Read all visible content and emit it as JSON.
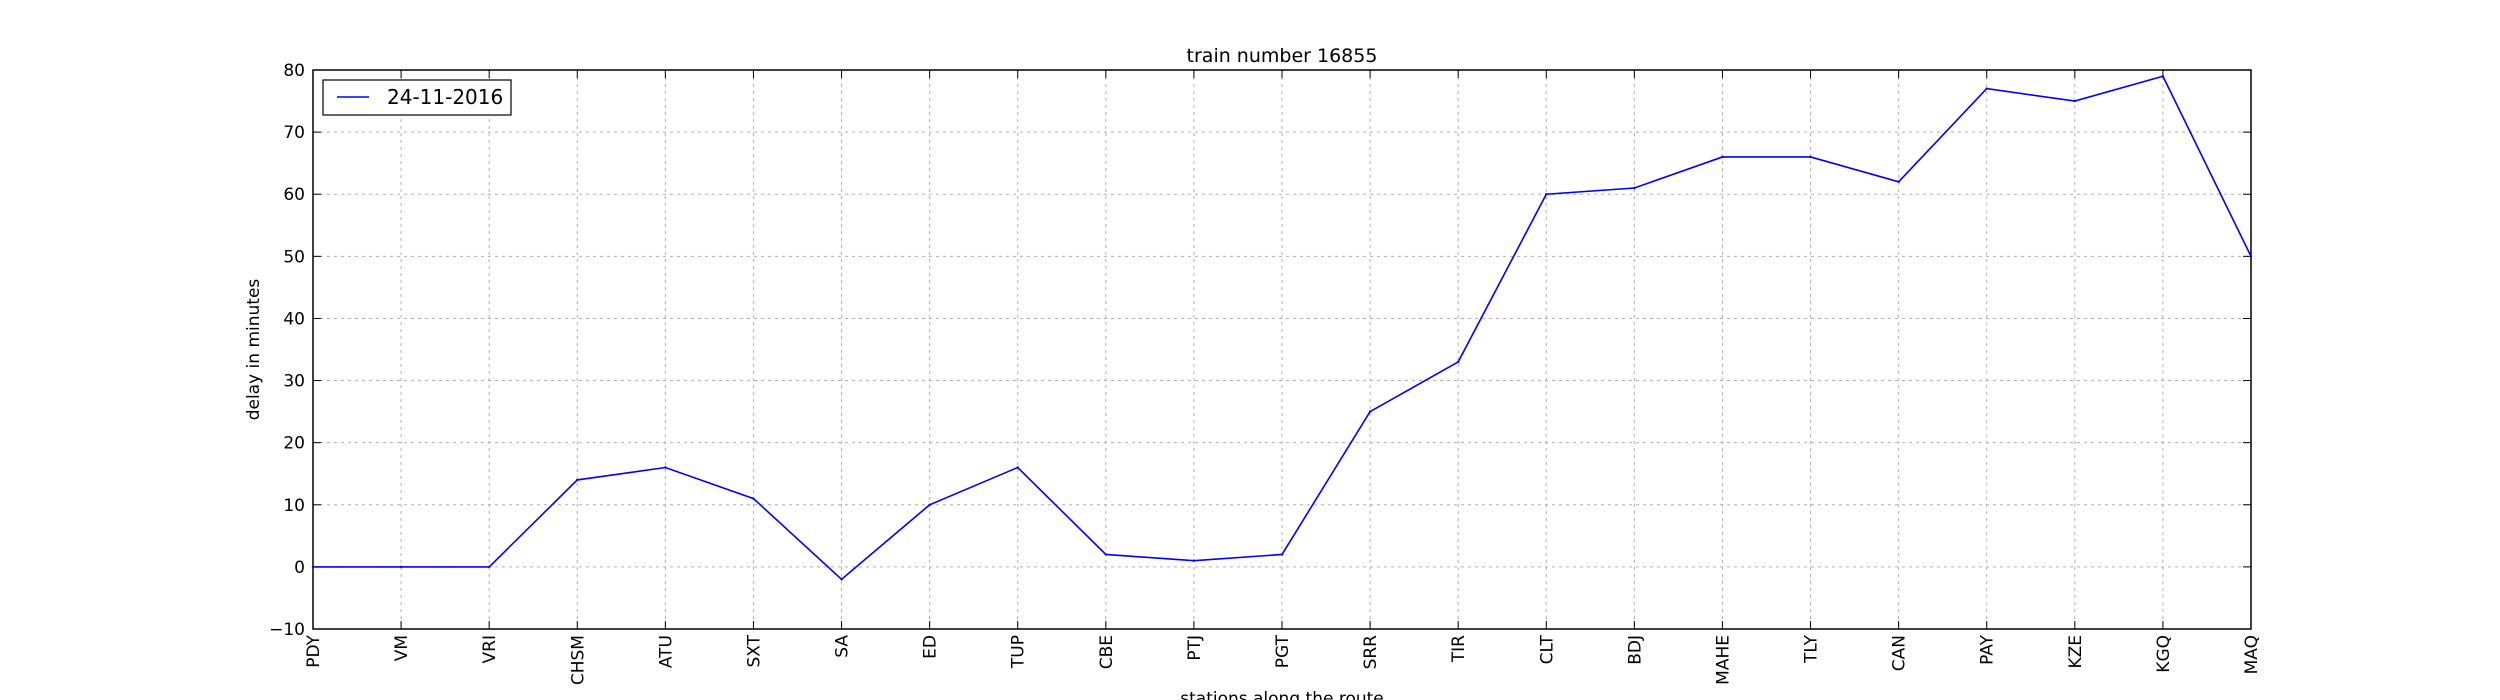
{
  "chart_data": {
    "type": "line",
    "title": "train number 16855",
    "xlabel": "stations along the route",
    "ylabel": "delay in minutes",
    "categories": [
      "PDY",
      "VM",
      "VRI",
      "CHSM",
      "ATU",
      "SXT",
      "SA",
      "ED",
      "TUP",
      "CBE",
      "PTJ",
      "PGT",
      "SRR",
      "TIR",
      "CLT",
      "BDJ",
      "MAHE",
      "TLY",
      "CAN",
      "PAY",
      "KZE",
      "KGQ",
      "MAQ"
    ],
    "series": [
      {
        "name": "24-11-2016",
        "color": "#0000ff",
        "values": [
          0,
          0,
          0,
          14,
          16,
          11,
          -2,
          10,
          16,
          2,
          1,
          2,
          25,
          33,
          60,
          61,
          66,
          66,
          62,
          77,
          75,
          79,
          50
        ]
      }
    ],
    "ylim": [
      -10,
      80
    ],
    "yticks": [
      "−10",
      "0",
      "10",
      "20",
      "30",
      "40",
      "50",
      "60",
      "70",
      "80"
    ],
    "grid": true,
    "legend_location": "upper-left"
  }
}
